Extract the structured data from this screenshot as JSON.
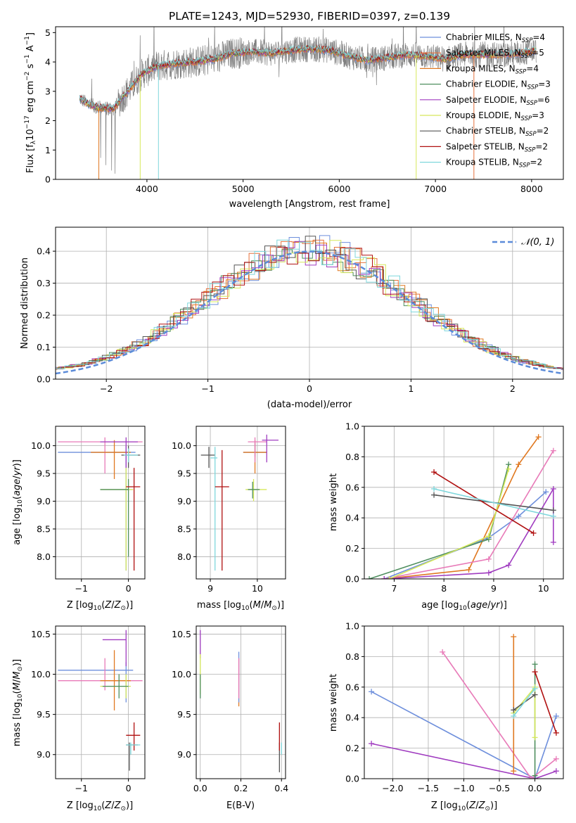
{
  "figure": {
    "title": "PLATE=1243, MJD=52930, FIBERID=0397, z=0.139"
  },
  "colors": {
    "chabrier_miles": "#6e8fdc",
    "salpeter_miles": "#e6723c",
    "kroupa_miles": "#e07820",
    "chabrier_elodie": "#4f8f5f",
    "salpeter_elodie": "#a03cc0",
    "kroupa_elodie": "#d6e85a",
    "chabrier_stelib": "#555555",
    "salpeter_stelib": "#b01010",
    "kroupa_stelib": "#7fd7dc",
    "data": "#808080",
    "pink": "#e87ab8",
    "normal_curve": "#5b8bd9"
  },
  "chart_data": [
    {
      "id": "spectrum",
      "type": "line",
      "title": "PLATE=1243, MJD=52930, FIBERID=0397, z=0.139",
      "xlabel": "wavelength [Angstrom, rest frame]",
      "ylabel": "Flux [f_λ 10^-17 erg cm^-2 s^-1 A^-1]",
      "xlim": [
        3050,
        8330
      ],
      "ylim": [
        0,
        5.2
      ],
      "xticks": [
        "4000",
        "5000",
        "6000",
        "7000",
        "8000"
      ],
      "xtick_values": [
        4000,
        5000,
        6000,
        7000,
        8000
      ],
      "yticks": [
        "0",
        "1",
        "2",
        "3",
        "4",
        "5"
      ],
      "ytick_values": [
        0,
        1,
        2,
        3,
        4,
        5
      ],
      "grid": false,
      "legend_position": "right",
      "legend": [
        {
          "base": "Chabrier MILES, N",
          "sub": "SSP",
          "tail": "=4",
          "color_key": "chabrier_miles"
        },
        {
          "base": "Salpeter MILES, N",
          "sub": "SSP",
          "tail": "=5",
          "color_key": "salpeter_miles"
        },
        {
          "base": "Kroupa MILES, N",
          "sub": "SSP",
          "tail": "=4",
          "color_key": "kroupa_miles"
        },
        {
          "base": "Chabrier ELODIE, N",
          "sub": "SSP",
          "tail": "=3",
          "color_key": "chabrier_elodie"
        },
        {
          "base": "Salpeter ELODIE, N",
          "sub": "SSP",
          "tail": "=6",
          "color_key": "salpeter_elodie"
        },
        {
          "base": "Kroupa ELODIE, N",
          "sub": "SSP",
          "tail": "=3",
          "color_key": "kroupa_elodie"
        },
        {
          "base": "Chabrier STELIB, N",
          "sub": "SSP",
          "tail": "=2",
          "color_key": "chabrier_stelib"
        },
        {
          "base": "Salpeter STELIB, N",
          "sub": "SSP",
          "tail": "=2",
          "color_key": "salpeter_stelib"
        },
        {
          "base": "Kroupa STELIB, N",
          "sub": "SSP",
          "tail": "=2",
          "color_key": "kroupa_stelib"
        }
      ],
      "continuum": [
        [
          3300,
          2.75
        ],
        [
          3400,
          2.55
        ],
        [
          3500,
          2.45
        ],
        [
          3650,
          2.4
        ],
        [
          3750,
          2.8
        ],
        [
          3850,
          3.2
        ],
        [
          3950,
          3.6
        ],
        [
          4100,
          3.85
        ],
        [
          4300,
          3.95
        ],
        [
          4500,
          4.0
        ],
        [
          4700,
          4.1
        ],
        [
          4900,
          4.3
        ],
        [
          5100,
          4.35
        ],
        [
          5300,
          4.3
        ],
        [
          5500,
          4.4
        ],
        [
          5700,
          4.45
        ],
        [
          5900,
          4.4
        ],
        [
          6100,
          4.2
        ],
        [
          6300,
          4.05
        ],
        [
          6500,
          4.15
        ],
        [
          6700,
          4.25
        ],
        [
          6900,
          4.2
        ],
        [
          7100,
          4.1
        ],
        [
          7300,
          4.25
        ],
        [
          7500,
          4.25
        ],
        [
          7700,
          4.25
        ],
        [
          7900,
          4.3
        ],
        [
          8050,
          4.4
        ]
      ]
    },
    {
      "id": "residuals",
      "type": "line",
      "xlabel": "(data-model)/error",
      "ylabel": "Normed distribution",
      "xlim": [
        -2.5,
        2.5
      ],
      "ylim": [
        0,
        0.475
      ],
      "xticks": [
        "−2",
        "−1",
        "0",
        "1",
        "2"
      ],
      "xtick_values": [
        -2,
        -1,
        0,
        1,
        2
      ],
      "yticks": [
        "0.0",
        "0.1",
        "0.2",
        "0.3",
        "0.4"
      ],
      "ytick_values": [
        0,
        0.1,
        0.2,
        0.3,
        0.4
      ],
      "grid": true,
      "legend_position": "top-right",
      "legend": [
        {
          "label": "𝒩(0, 1)",
          "color_key": "normal_curve"
        }
      ]
    },
    {
      "id": "age_vs_Z",
      "type": "scatter",
      "xlabel": "Z [log10(Z/Z⊙)]",
      "ylabel": "age  [log10(age/yr)]",
      "xlim": [
        -1.55,
        0.35
      ],
      "ylim": [
        7.6,
        10.35
      ],
      "xticks": [
        "−1",
        "0"
      ],
      "xtick_values": [
        -1,
        0
      ],
      "yticks": [
        "8.0",
        "8.5",
        "9.0",
        "9.5",
        "10.0"
      ],
      "ytick_values": [
        8,
        8.5,
        9,
        9.5,
        10
      ],
      "grid": true
    },
    {
      "id": "age_vs_mass",
      "type": "scatter",
      "xlabel": "mass [log10(M/M⊙)]",
      "xlim": [
        8.7,
        10.6
      ],
      "ylim": [
        7.6,
        10.35
      ],
      "xticks": [
        "9",
        "10"
      ],
      "xtick_values": [
        9,
        10
      ],
      "yticks": [
        "8.0",
        "8.5",
        "9.0",
        "9.5",
        "10.0"
      ],
      "ytick_values": [
        8,
        8.5,
        9,
        9.5,
        10
      ],
      "grid": true
    },
    {
      "id": "weight_vs_age",
      "type": "line",
      "xlabel": "age  [log10(age/yr)]",
      "ylabel": "mass weight",
      "xlim": [
        6.4,
        10.4
      ],
      "ylim": [
        0,
        1
      ],
      "xticks": [
        "7",
        "8",
        "9",
        "10"
      ],
      "xtick_values": [
        7,
        8,
        9,
        10
      ],
      "yticks": [
        "0.0",
        "0.2",
        "0.4",
        "0.6",
        "0.8",
        "1.0"
      ],
      "ytick_values": [
        0,
        0.2,
        0.4,
        0.6,
        0.8,
        1
      ],
      "grid": true,
      "series": [
        {
          "color_key": "chabrier_miles",
          "points": [
            [
              6.8,
              0
            ],
            [
              8.9,
              0.27
            ],
            [
              9.5,
              0.41
            ],
            [
              10.05,
              0.57
            ]
          ]
        },
        {
          "color_key": "kroupa_miles",
          "points": [
            [
              6.8,
              0
            ],
            [
              8.5,
              0.06
            ],
            [
              9.5,
              0.75
            ],
            [
              9.9,
              0.93
            ]
          ]
        },
        {
          "color_key": "chabrier_elodie",
          "points": [
            [
              6.5,
              0
            ],
            [
              8.9,
              0.26
            ],
            [
              9.3,
              0.75
            ]
          ]
        },
        {
          "color_key": "pink",
          "points": [
            [
              6.8,
              0
            ],
            [
              8.9,
              0.13
            ],
            [
              10.2,
              0.84
            ]
          ]
        },
        {
          "color_key": "salpeter_elodie",
          "points": [
            [
              6.8,
              0
            ],
            [
              8.9,
              0.04
            ],
            [
              9.3,
              0.09
            ],
            [
              10.2,
              0.59
            ],
            [
              10.2,
              0.24
            ]
          ]
        },
        {
          "color_key": "kroupa_elodie",
          "points": [
            [
              6.9,
              0
            ],
            [
              8.9,
              0.28
            ],
            [
              9.3,
              0.72
            ]
          ]
        },
        {
          "color_key": "chabrier_stelib",
          "points": [
            [
              7.8,
              0.55
            ],
            [
              10.2,
              0.45
            ]
          ]
        },
        {
          "color_key": "salpeter_stelib",
          "points": [
            [
              7.8,
              0.7
            ],
            [
              9.8,
              0.3
            ]
          ]
        },
        {
          "color_key": "kroupa_stelib",
          "points": [
            [
              7.8,
              0.59
            ],
            [
              10.2,
              0.41
            ]
          ]
        }
      ]
    },
    {
      "id": "mass_vs_Z",
      "type": "scatter",
      "xlabel": "Z [log10(Z/Z⊙)]",
      "ylabel": "mass [log10(M/M⊙)]",
      "xlim": [
        -1.55,
        0.35
      ],
      "ylim": [
        8.7,
        10.6
      ],
      "xticks": [
        "−1",
        "0"
      ],
      "xtick_values": [
        -1,
        0
      ],
      "yticks": [
        "9.0",
        "9.5",
        "10.0",
        "10.5"
      ],
      "ytick_values": [
        9,
        9.5,
        10,
        10.5
      ],
      "grid": true
    },
    {
      "id": "mass_vs_ebv",
      "type": "scatter",
      "xlabel": "E(B-V)",
      "xlim": [
        -0.02,
        0.42
      ],
      "ylim": [
        8.7,
        10.6
      ],
      "xticks": [
        "0.0",
        "0.2",
        "0.4"
      ],
      "xtick_values": [
        0,
        0.2,
        0.4
      ],
      "yticks": [
        "9.0",
        "9.5",
        "10.0",
        "10.5"
      ],
      "ytick_values": [
        9,
        9.5,
        10,
        10.5
      ],
      "grid": true
    },
    {
      "id": "weight_vs_Z",
      "type": "line",
      "xlabel": "Z [log10(Z/Z⊙)]",
      "ylabel": "mass weight",
      "xlim": [
        -2.4,
        0.4
      ],
      "ylim": [
        0,
        1
      ],
      "xticks": [
        "−2.0",
        "−1.5",
        "−1.0",
        "−0.5",
        "0.0"
      ],
      "xtick_values": [
        -2,
        -1.5,
        -1,
        -0.5,
        0
      ],
      "yticks": [
        "0.0",
        "0.2",
        "0.4",
        "0.6",
        "0.8",
        "1.0"
      ],
      "ytick_values": [
        0,
        0.2,
        0.4,
        0.6,
        0.8,
        1
      ],
      "grid": true,
      "series": [
        {
          "color_key": "chabrier_miles",
          "points": [
            [
              -2.3,
              0.57
            ],
            [
              0,
              0
            ],
            [
              0.3,
              0.41
            ]
          ]
        },
        {
          "color_key": "salpeter_elodie",
          "points": [
            [
              -2.3,
              0.23
            ],
            [
              0,
              0
            ],
            [
              0.3,
              0.05
            ]
          ]
        },
        {
          "color_key": "pink",
          "points": [
            [
              -1.3,
              0.83
            ],
            [
              -0.05,
              0
            ],
            [
              0.3,
              0.13
            ]
          ]
        },
        {
          "color_key": "kroupa_miles",
          "points": [
            [
              -0.3,
              0.93
            ],
            [
              -0.3,
              0.05
            ]
          ]
        },
        {
          "color_key": "chabrier_elodie",
          "points": [
            [
              0,
              0.75
            ],
            [
              0,
              0.02
            ]
          ]
        },
        {
          "color_key": "kroupa_elodie",
          "points": [
            [
              -0.3,
              0.43
            ],
            [
              0,
              0.6
            ],
            [
              0,
              0.27
            ]
          ]
        },
        {
          "color_key": "chabrier_stelib",
          "points": [
            [
              -0.3,
              0.45
            ],
            [
              0,
              0.55
            ]
          ]
        },
        {
          "color_key": "salpeter_stelib",
          "points": [
            [
              0,
              0.7
            ],
            [
              0.3,
              0.3
            ]
          ]
        },
        {
          "color_key": "kroupa_stelib",
          "points": [
            [
              -0.3,
              0.41
            ],
            [
              0,
              0.59
            ]
          ]
        }
      ]
    }
  ]
}
